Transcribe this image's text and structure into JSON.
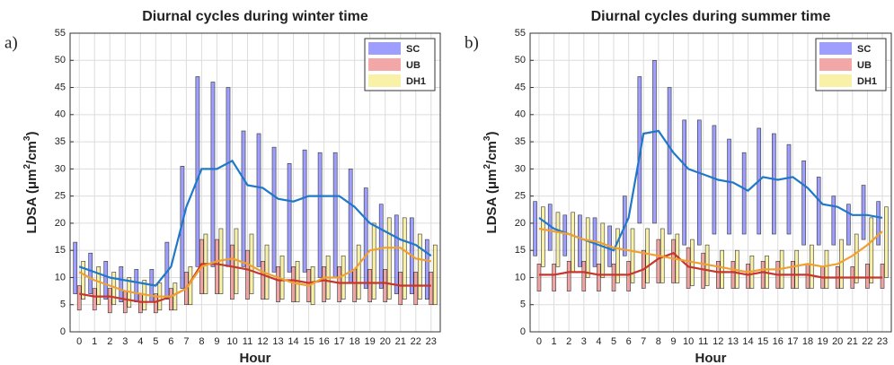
{
  "chart_data": [
    {
      "type": "range-line",
      "title": "Diurnal cycles during winter time",
      "panel_label": "a)",
      "ylabel": [
        "LDSA (μm",
        "2",
        "/cm",
        "3",
        ")"
      ],
      "xlabel": "Hour",
      "categories": [
        "0",
        "1",
        "2",
        "3",
        "4",
        "5",
        "6",
        "7",
        "8",
        "9",
        "10",
        "11",
        "12",
        "13",
        "14",
        "15",
        "16",
        "17",
        "18",
        "19",
        "20",
        "21",
        "22",
        "23"
      ],
      "ylim": [
        0,
        55
      ],
      "yticks": [
        0,
        5,
        10,
        15,
        20,
        25,
        30,
        35,
        40,
        45,
        50,
        55
      ],
      "grid": true,
      "legend": "upper right",
      "series": [
        {
          "name": "SC",
          "color": "#7d7dff",
          "line_color": "#1f78c8",
          "values": [
            12,
            11,
            10,
            9.5,
            9,
            8.5,
            12,
            23,
            30,
            30,
            31.5,
            27,
            26.5,
            24.5,
            24,
            25,
            25,
            25,
            23,
            20,
            18.5,
            17,
            16,
            14
          ],
          "low": [
            7,
            7,
            6,
            5.5,
            5.5,
            5.5,
            6,
            8,
            12,
            12,
            12,
            12,
            12,
            11,
            11,
            11,
            10,
            10,
            9,
            8,
            8,
            7,
            7,
            6
          ],
          "high": [
            16.5,
            14.5,
            13,
            12,
            11.5,
            11.5,
            16.5,
            30.5,
            47,
            46,
            45,
            37,
            36.5,
            34,
            31,
            33.5,
            33,
            33,
            30,
            26.5,
            23.5,
            21.5,
            21,
            17
          ]
        },
        {
          "name": "UB",
          "color": "#f08a8a",
          "line_color": "#c8352a",
          "values": [
            7,
            6.5,
            6.5,
            6,
            5.5,
            5.5,
            6.5,
            8,
            12.5,
            12.5,
            12,
            11.5,
            10.5,
            9.5,
            9.5,
            9,
            9.5,
            9,
            9,
            9,
            9,
            8.5,
            8.5,
            8.5
          ],
          "low": [
            4,
            4,
            3.5,
            3.5,
            3.5,
            3.5,
            4,
            5,
            7,
            7,
            6,
            6,
            6,
            5.5,
            5.5,
            5.5,
            5.5,
            5.5,
            5.5,
            5.5,
            5.5,
            5,
            5,
            5
          ],
          "high": [
            8.5,
            8,
            8,
            7.5,
            7,
            7,
            8,
            11,
            17,
            17,
            16,
            15,
            13,
            12,
            12,
            11.5,
            12,
            12,
            11.5,
            11.5,
            11.5,
            11,
            11,
            11
          ]
        },
        {
          "name": "DH1",
          "color": "#f5ec8a",
          "line_color": "#f0a030",
          "values": [
            11,
            9.5,
            8.5,
            7.5,
            7,
            6.5,
            6.5,
            8,
            12,
            13,
            13.5,
            12.5,
            11,
            10,
            9,
            8.5,
            10,
            10,
            11.5,
            15,
            15.5,
            15.5,
            13.5,
            13
          ],
          "low": [
            6,
            5,
            5,
            4.5,
            4,
            4,
            4,
            5,
            7,
            7,
            7,
            7,
            6,
            6,
            5.5,
            5,
            6,
            6,
            6,
            6,
            6,
            6,
            6,
            5
          ],
          "high": [
            13,
            12,
            11,
            10,
            9.5,
            9,
            9,
            12,
            18,
            19,
            19,
            18,
            16,
            14,
            13,
            12,
            14,
            14,
            16,
            20,
            21,
            21,
            18,
            16
          ]
        }
      ]
    },
    {
      "type": "range-line",
      "title": "Diurnal cycles during summer time",
      "panel_label": "b)",
      "ylabel": [
        "LDSA (μm",
        "2",
        "/cm",
        "3",
        ")"
      ],
      "xlabel": "Hour",
      "categories": [
        "0",
        "1",
        "2",
        "3",
        "4",
        "5",
        "6",
        "7",
        "8",
        "9",
        "10",
        "11",
        "12",
        "13",
        "14",
        "15",
        "16",
        "17",
        "18",
        "19",
        "20",
        "21",
        "22",
        "23"
      ],
      "ylim": [
        0,
        55
      ],
      "yticks": [
        0,
        5,
        10,
        15,
        20,
        25,
        30,
        35,
        40,
        45,
        50,
        55
      ],
      "grid": true,
      "legend": "upper right",
      "series": [
        {
          "name": "SC",
          "color": "#7d7dff",
          "line_color": "#1f78c8",
          "values": [
            21,
            19,
            18,
            17,
            16,
            15,
            21,
            36.5,
            37,
            33,
            30,
            29,
            28,
            27.5,
            26,
            28.5,
            28,
            28.5,
            26.5,
            23.5,
            23,
            21.5,
            21.5,
            21
          ],
          "low": [
            14,
            15,
            14,
            12,
            12,
            12,
            14,
            20,
            20,
            18,
            16,
            16,
            18,
            18,
            18,
            18,
            18,
            18,
            16,
            16,
            16,
            16,
            17,
            16
          ],
          "high": [
            24,
            23.5,
            21.5,
            21.5,
            21,
            19.5,
            25,
            47,
            50,
            45,
            39,
            39,
            38,
            35.5,
            33,
            37.5,
            36.5,
            34.5,
            31.5,
            28.5,
            25,
            23.5,
            27,
            24
          ]
        },
        {
          "name": "UB",
          "color": "#f08a8a",
          "line_color": "#c8352a",
          "values": [
            10.5,
            10.5,
            11,
            11,
            10.5,
            10.5,
            10.5,
            11.5,
            13.5,
            14.5,
            12,
            11.5,
            11,
            11,
            10.5,
            11,
            10.5,
            10.5,
            10.5,
            10,
            10,
            10,
            10,
            10
          ],
          "low": [
            7.5,
            7.5,
            7.5,
            7.5,
            7.5,
            7.5,
            7.5,
            8,
            9,
            9,
            8,
            8,
            8,
            8,
            8,
            8,
            8,
            8,
            8,
            8,
            8,
            8,
            8,
            8
          ],
          "high": [
            12.5,
            12.5,
            13,
            13,
            12.5,
            12.5,
            13,
            15,
            17,
            17,
            15.5,
            14.5,
            13,
            13,
            12.5,
            13,
            13,
            13,
            12.5,
            12,
            12,
            12,
            12.5,
            12.5
          ]
        },
        {
          "name": "DH1",
          "color": "#f5ec8a",
          "line_color": "#f0a030",
          "values": [
            19,
            18.5,
            18,
            17,
            16.5,
            15.5,
            15,
            14.5,
            14,
            13.5,
            13,
            12.5,
            12,
            11.5,
            11,
            11.5,
            11.5,
            12,
            12.5,
            12,
            12.5,
            14,
            16,
            18.5
          ],
          "low": [
            12,
            12,
            11,
            10,
            10,
            9,
            9,
            9,
            9,
            9,
            8.5,
            8.5,
            8,
            8,
            8,
            8,
            8,
            8,
            8,
            8,
            8,
            9,
            9,
            10
          ],
          "high": [
            23,
            22,
            22,
            21,
            20,
            19,
            19,
            19,
            19,
            18,
            17,
            16,
            15,
            15,
            14,
            14,
            15,
            15,
            16,
            15,
            17,
            18,
            21,
            23
          ]
        }
      ]
    }
  ]
}
